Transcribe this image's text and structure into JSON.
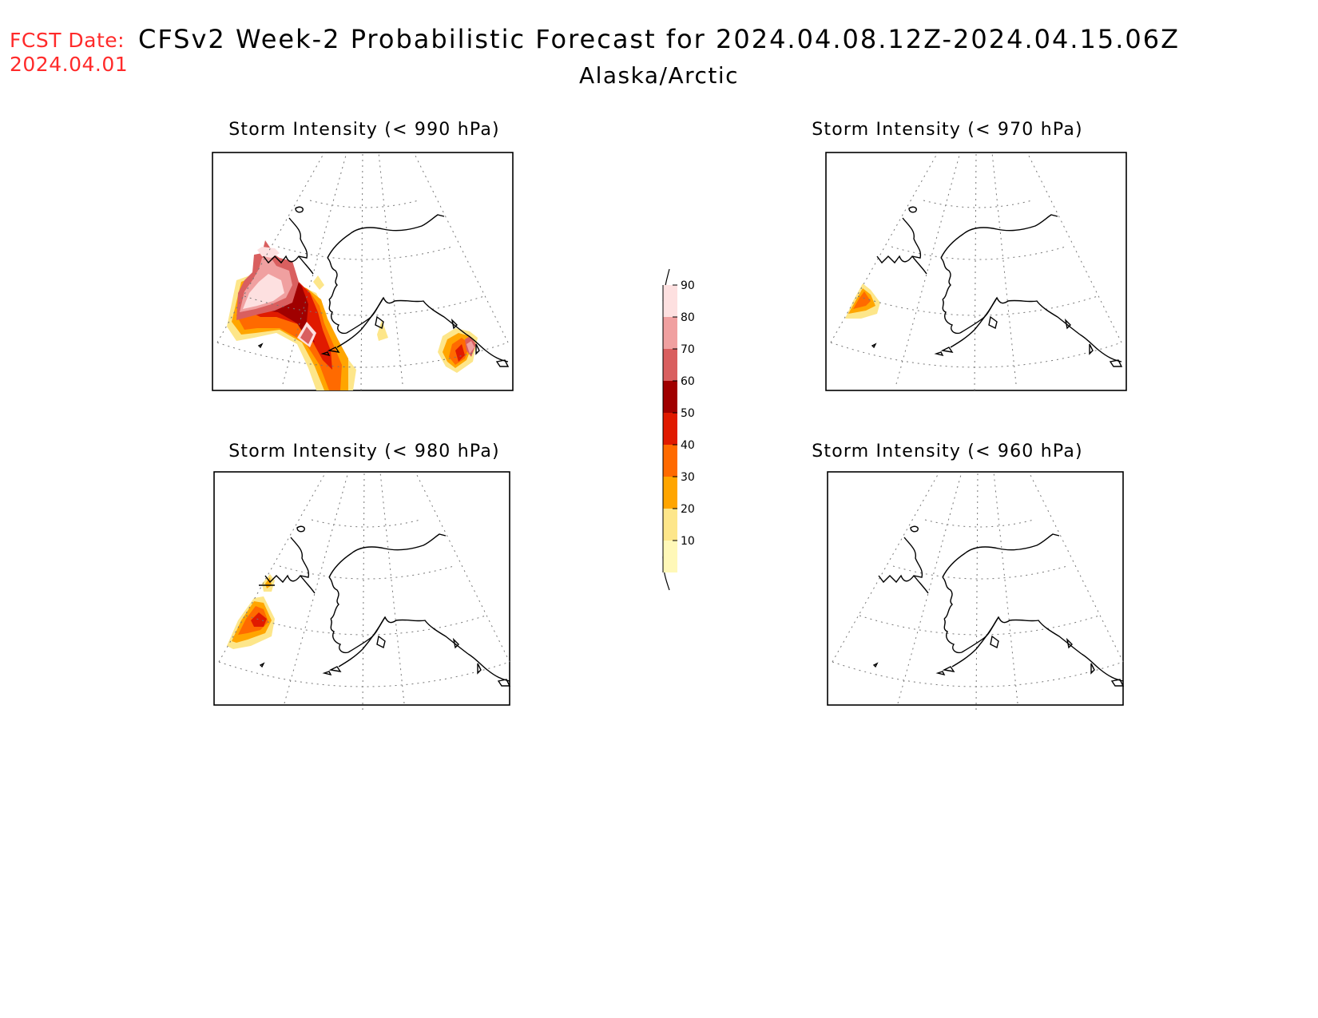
{
  "header": {
    "fcst_label": "FCST Date:",
    "fcst_date": "2024.04.01",
    "title": "CFSv2 Week-2 Probabilistic Forecast for 2024.04.08.12Z-2024.04.15.06Z",
    "region": "Alaska/Arctic"
  },
  "panels": [
    {
      "title": "Storm Intensity (< 990 hPa)"
    },
    {
      "title": "Storm Intensity (< 970 hPa)"
    },
    {
      "title": "Storm Intensity (< 980 hPa)"
    },
    {
      "title": "Storm Intensity (< 960 hPa)"
    }
  ],
  "legend": {
    "levels": [
      "10",
      "20",
      "30",
      "40",
      "50",
      "60",
      "70",
      "80",
      "90"
    ],
    "colors": [
      "#fff8b8",
      "#fde68a",
      "#ffa500",
      "#ff6a00",
      "#e01a00",
      "#a00000",
      "#d95f5f",
      "#f0a0a0",
      "#fde0e0"
    ]
  }
}
